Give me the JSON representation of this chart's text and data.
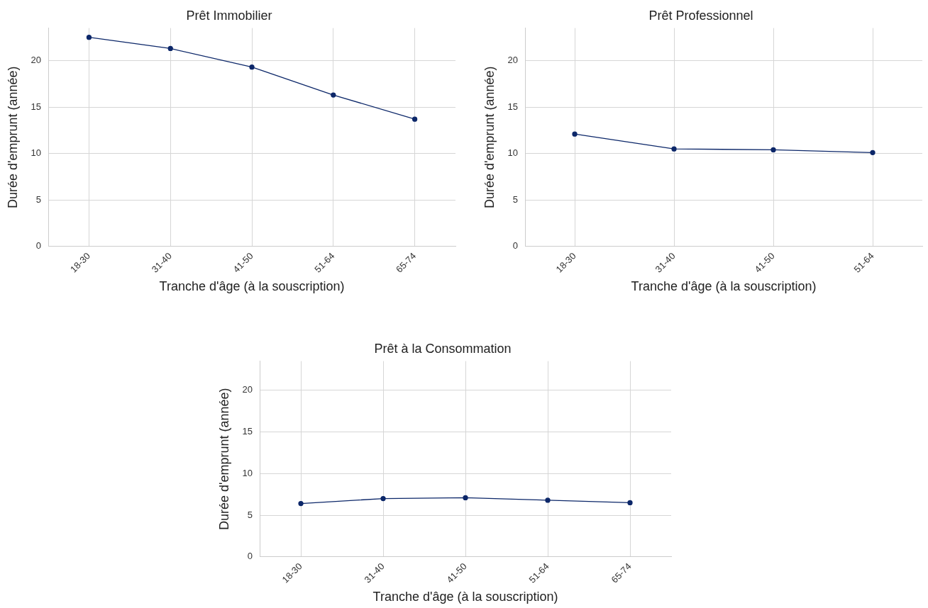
{
  "chart_data": [
    {
      "type": "line",
      "title": "Prêt Immobilier",
      "xlabel": "Tranche d'âge (à la souscription)",
      "ylabel": "Durée d'emprunt (année)",
      "categories": [
        "18-30",
        "31-40",
        "41-50",
        "51-64",
        "65-74"
      ],
      "series": [
        {
          "color": "#0c2769",
          "values": [
            22.5,
            21.3,
            19.3,
            16.3,
            13.7
          ]
        }
      ],
      "ylim": [
        0,
        23.5
      ],
      "yticks": [
        0,
        5,
        10,
        15,
        20
      ],
      "grid": true,
      "legend": false,
      "marker": "circle",
      "line_style": "solid"
    },
    {
      "type": "line",
      "title": "Prêt Professionnel",
      "xlabel": "Tranche d'âge (à la souscription)",
      "ylabel": "Durée d'emprunt (année)",
      "categories": [
        "18-30",
        "31-40",
        "41-50",
        "51-64"
      ],
      "series": [
        {
          "color": "#0c2769",
          "values": [
            12.1,
            10.5,
            10.4,
            10.1
          ]
        }
      ],
      "ylim": [
        0,
        23.5
      ],
      "yticks": [
        0,
        5,
        10,
        15,
        20
      ],
      "grid": true,
      "legend": false,
      "marker": "circle",
      "line_style": "solid"
    },
    {
      "type": "line",
      "title": "Prêt à la Consommation",
      "xlabel": "Tranche d'âge (à la souscription)",
      "ylabel": "Durée d'emprunt (année)",
      "categories": [
        "18-30",
        "31-40",
        "41-50",
        "51-64",
        "65-74"
      ],
      "series": [
        {
          "color": "#0c2769",
          "values": [
            6.4,
            7.0,
            7.1,
            6.8,
            6.5
          ]
        }
      ],
      "ylim": [
        0,
        23.5
      ],
      "yticks": [
        0,
        5,
        10,
        15,
        20
      ],
      "grid": true,
      "legend": false,
      "marker": "circle",
      "line_style": "solid"
    }
  ]
}
